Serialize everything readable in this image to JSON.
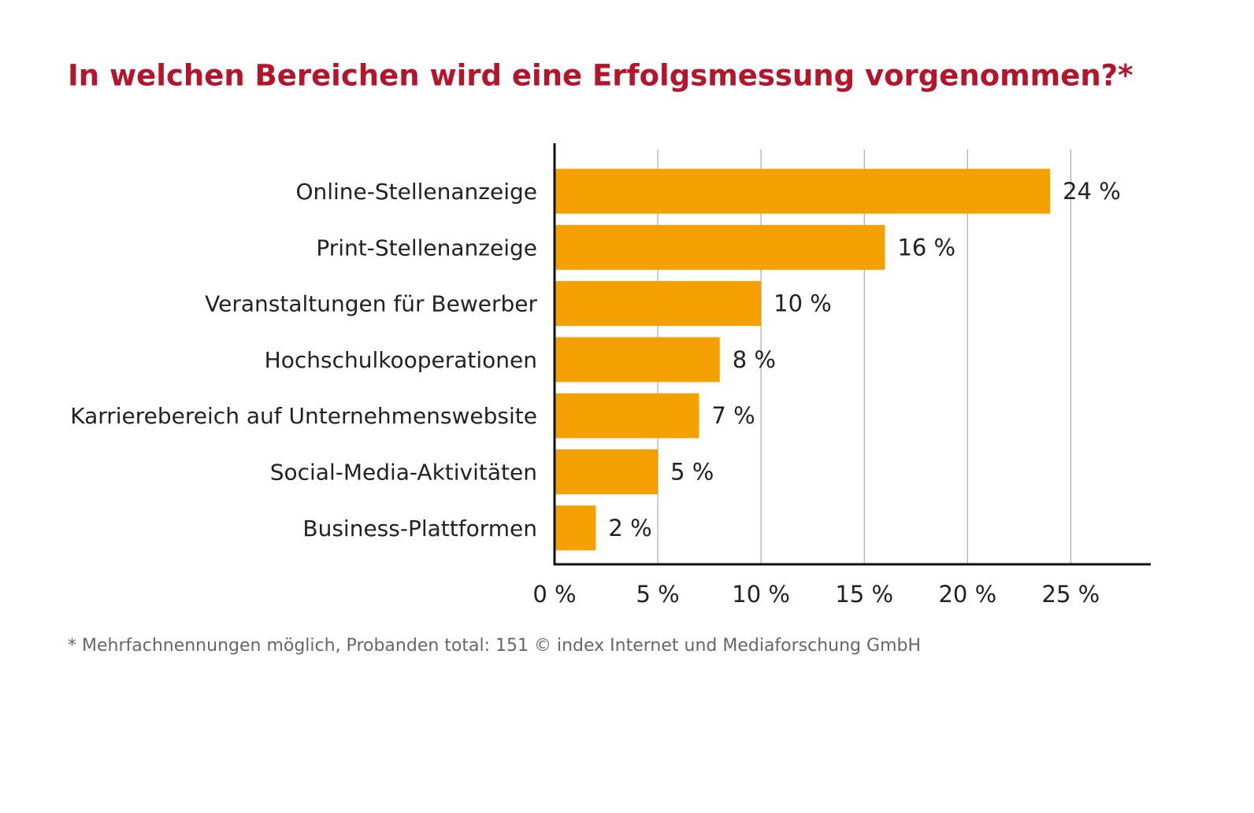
{
  "chart_data": {
    "type": "bar",
    "orientation": "horizontal",
    "title": "In welchen Bereichen wird eine Erfolgsmessung vorgenommen?*",
    "categories": [
      "Online-Stellenanzeige",
      "Print-Stellenanzeige",
      "Veranstaltungen für Bewerber",
      "Hochschulkooperationen",
      "Karrierebereich auf Unternehmenswebsite",
      "Social-Media-Aktivitäten",
      "Business-Plattformen"
    ],
    "values": [
      24,
      16,
      10,
      8,
      7,
      5,
      2
    ],
    "value_labels": [
      "24 %",
      "16 %",
      "10 %",
      "8 %",
      "7 %",
      "5 %",
      "2 %"
    ],
    "color": "#f4a000",
    "xlim": [
      0,
      28.8
    ],
    "xticks": [
      {
        "value": 0,
        "label": "0 %"
      },
      {
        "value": 5,
        "label": "5 %"
      },
      {
        "value": 10,
        "label": "10 %"
      },
      {
        "value": 15,
        "label": "15 %"
      },
      {
        "value": 20,
        "label": "20 %"
      },
      {
        "value": 25,
        "label": "25 %"
      }
    ],
    "grid": true,
    "footnote": "* Mehrfachnennungen möglich, Probanden total: 151 © index Internet und Mediaforschung GmbH"
  }
}
